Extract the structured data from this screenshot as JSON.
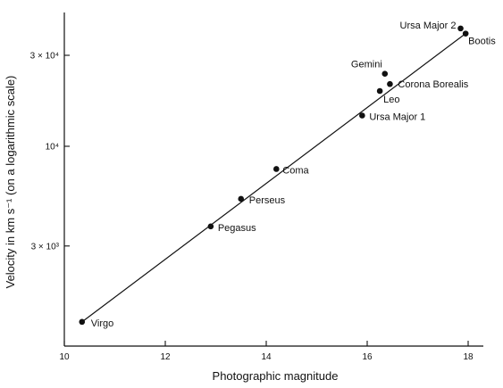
{
  "chart_data": {
    "type": "scatter",
    "xlabel": "Photographic magnitude",
    "ylabel": "Velocity in km s⁻¹ (on a logarithmic scale)",
    "xlim": [
      10,
      18.2
    ],
    "ylim": [
      1000,
      50000
    ],
    "yscale": "log",
    "xticks": [
      10,
      12,
      14,
      16,
      18
    ],
    "yticks": [
      {
        "value": 3000,
        "label": "3 × 10³"
      },
      {
        "value": 10000,
        "label": "10⁴"
      },
      {
        "value": 30000,
        "label": "3 × 10⁴"
      }
    ],
    "grid": false,
    "points": [
      {
        "name": "Virgo",
        "x": 10.35,
        "y": 1200
      },
      {
        "name": "Pegasus",
        "x": 12.9,
        "y": 3800
      },
      {
        "name": "Perseus",
        "x": 13.5,
        "y": 5300
      },
      {
        "name": "Coma",
        "x": 14.2,
        "y": 7600
      },
      {
        "name": "Ursa Major 1",
        "x": 15.9,
        "y": 14500
      },
      {
        "name": "Leo",
        "x": 16.25,
        "y": 19500
      },
      {
        "name": "Gemini",
        "x": 16.35,
        "y": 24000
      },
      {
        "name": "Corona Borealis",
        "x": 16.45,
        "y": 21200
      },
      {
        "name": "Ursa Major 2",
        "x": 17.85,
        "y": 41500
      },
      {
        "name": "Bootis",
        "x": 17.95,
        "y": 39000
      }
    ],
    "fit_line": {
      "x": [
        10.35,
        17.95
      ],
      "y": [
        1200,
        39000
      ]
    }
  }
}
